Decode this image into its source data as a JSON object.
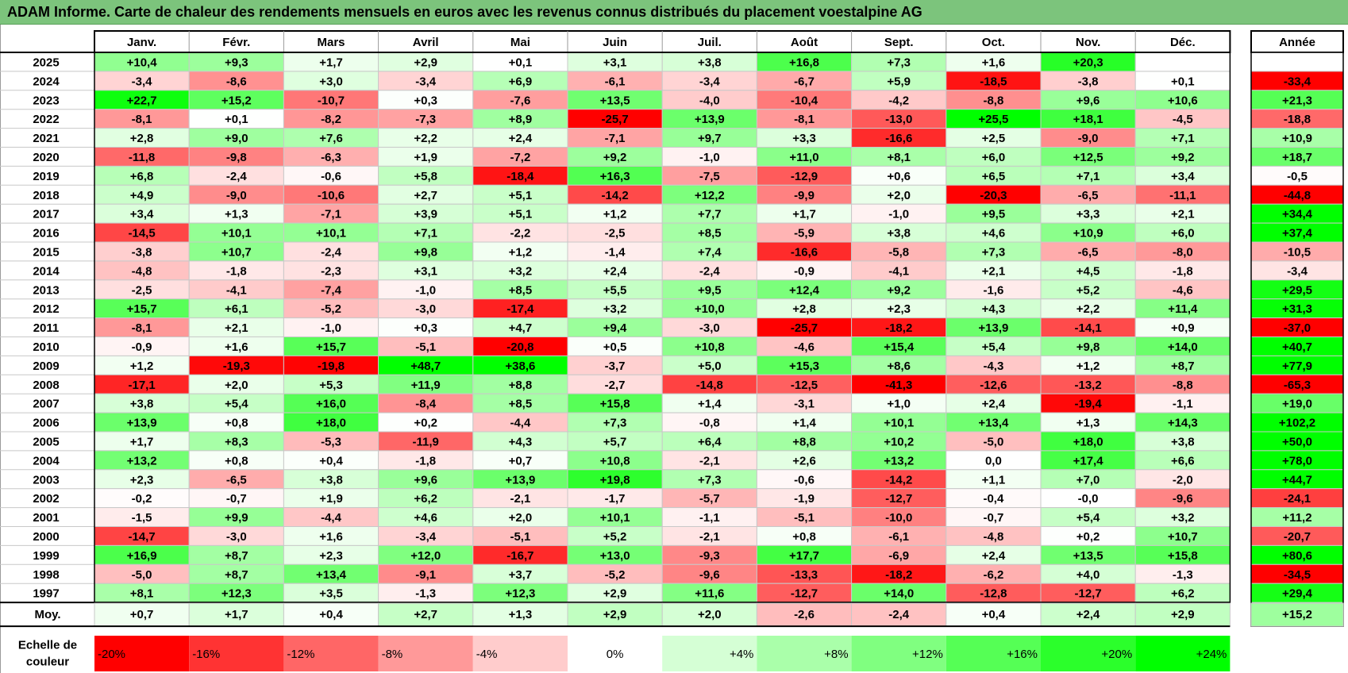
{
  "title": "ADAM Informe. Carte de chaleur des rendements mensuels en euros avec les revenus connus distribués du placement voestalpine AG",
  "chart_data": {
    "type": "heatmap",
    "months": [
      "Janv.",
      "Févr.",
      "Mars",
      "Avril",
      "Mai",
      "Juin",
      "Juil.",
      "Août",
      "Sept.",
      "Oct.",
      "Nov.",
      "Déc."
    ],
    "year_header": "Année",
    "average_label": "Moy.",
    "rows": [
      {
        "year": "2025",
        "values": [
          "+10,4",
          "+9,3",
          "+1,7",
          "+2,9",
          "+0,1",
          "+3,1",
          "+3,8",
          "+16,8",
          "+7,3",
          "+1,6",
          "+20,3",
          ""
        ],
        "annual": ""
      },
      {
        "year": "2024",
        "values": [
          "-3,4",
          "-8,6",
          "+3,0",
          "-3,4",
          "+6,9",
          "-6,1",
          "-3,4",
          "-6,7",
          "+5,9",
          "-18,5",
          "-3,8",
          "+0,1"
        ],
        "annual": "-33,4"
      },
      {
        "year": "2023",
        "values": [
          "+22,7",
          "+15,2",
          "-10,7",
          "+0,3",
          "-7,6",
          "+13,5",
          "-4,0",
          "-10,4",
          "-4,2",
          "-8,8",
          "+9,6",
          "+10,6"
        ],
        "annual": "+21,3"
      },
      {
        "year": "2022",
        "values": [
          "-8,1",
          "+0,1",
          "-8,2",
          "-7,3",
          "+8,9",
          "-25,7",
          "+13,9",
          "-8,1",
          "-13,0",
          "+25,5",
          "+18,1",
          "-4,5"
        ],
        "annual": "-18,8"
      },
      {
        "year": "2021",
        "values": [
          "+2,8",
          "+9,0",
          "+7,6",
          "+2,2",
          "+2,4",
          "-7,1",
          "+9,7",
          "+3,3",
          "-16,6",
          "+2,5",
          "-9,0",
          "+7,1"
        ],
        "annual": "+10,9"
      },
      {
        "year": "2020",
        "values": [
          "-11,8",
          "-9,8",
          "-6,3",
          "+1,9",
          "-7,2",
          "+9,2",
          "-1,0",
          "+11,0",
          "+8,1",
          "+6,0",
          "+12,5",
          "+9,2"
        ],
        "annual": "+18,7"
      },
      {
        "year": "2019",
        "values": [
          "+6,8",
          "-2,4",
          "-0,6",
          "+5,8",
          "-18,4",
          "+16,3",
          "-7,5",
          "-12,9",
          "+0,6",
          "+6,5",
          "+7,1",
          "+3,4"
        ],
        "annual": "-0,5"
      },
      {
        "year": "2018",
        "values": [
          "+4,9",
          "-9,0",
          "-10,6",
          "+2,7",
          "+5,1",
          "-14,2",
          "+12,2",
          "-9,9",
          "+2,0",
          "-20,3",
          "-6,5",
          "-11,1"
        ],
        "annual": "-44,8"
      },
      {
        "year": "2017",
        "values": [
          "+3,4",
          "+1,3",
          "-7,1",
          "+3,9",
          "+5,1",
          "+1,2",
          "+7,7",
          "+1,7",
          "-1,0",
          "+9,5",
          "+3,3",
          "+2,1"
        ],
        "annual": "+34,4"
      },
      {
        "year": "2016",
        "values": [
          "-14,5",
          "+10,1",
          "+10,1",
          "+7,1",
          "-2,2",
          "-2,5",
          "+8,5",
          "-5,9",
          "+3,8",
          "+4,6",
          "+10,9",
          "+6,0"
        ],
        "annual": "+37,4"
      },
      {
        "year": "2015",
        "values": [
          "-3,8",
          "+10,7",
          "-2,4",
          "+9,8",
          "+1,2",
          "-1,4",
          "+7,4",
          "-16,6",
          "-5,8",
          "+7,3",
          "-6,5",
          "-8,0"
        ],
        "annual": "-10,5"
      },
      {
        "year": "2014",
        "values": [
          "-4,8",
          "-1,8",
          "-2,3",
          "+3,1",
          "+3,2",
          "+2,4",
          "-2,4",
          "-0,9",
          "-4,1",
          "+2,1",
          "+4,5",
          "-1,8"
        ],
        "annual": "-3,4"
      },
      {
        "year": "2013",
        "values": [
          "-2,5",
          "-4,1",
          "-7,4",
          "-1,0",
          "+8,5",
          "+5,5",
          "+9,5",
          "+12,4",
          "+9,2",
          "-1,6",
          "+5,2",
          "-4,6"
        ],
        "annual": "+29,5"
      },
      {
        "year": "2012",
        "values": [
          "+15,7",
          "+6,1",
          "-5,2",
          "-3,0",
          "-17,4",
          "+3,2",
          "+10,0",
          "+2,8",
          "+2,3",
          "+4,3",
          "+2,2",
          "+11,4"
        ],
        "annual": "+31,3"
      },
      {
        "year": "2011",
        "values": [
          "-8,1",
          "+2,1",
          "-1,0",
          "+0,3",
          "+4,7",
          "+9,4",
          "-3,0",
          "-25,7",
          "-18,2",
          "+13,9",
          "-14,1",
          "+0,9"
        ],
        "annual": "-37,0"
      },
      {
        "year": "2010",
        "values": [
          "-0,9",
          "+1,6",
          "+15,7",
          "-5,1",
          "-20,8",
          "+0,5",
          "+10,8",
          "-4,6",
          "+15,4",
          "+5,4",
          "+9,8",
          "+14,0"
        ],
        "annual": "+40,7"
      },
      {
        "year": "2009",
        "values": [
          "+1,2",
          "-19,3",
          "-19,8",
          "+48,7",
          "+38,6",
          "-3,7",
          "+5,0",
          "+15,3",
          "+8,6",
          "-4,3",
          "+1,2",
          "+8,7"
        ],
        "annual": "+77,9"
      },
      {
        "year": "2008",
        "values": [
          "-17,1",
          "+2,0",
          "+5,3",
          "+11,9",
          "+8,8",
          "-2,7",
          "-14,8",
          "-12,5",
          "-41,3",
          "-12,6",
          "-13,2",
          "-8,8"
        ],
        "annual": "-65,3"
      },
      {
        "year": "2007",
        "values": [
          "+3,8",
          "+5,4",
          "+16,0",
          "-8,4",
          "+8,5",
          "+15,8",
          "+1,4",
          "-3,1",
          "+1,0",
          "+2,4",
          "-19,4",
          "-1,1"
        ],
        "annual": "+19,0"
      },
      {
        "year": "2006",
        "values": [
          "+13,9",
          "+0,8",
          "+18,0",
          "+0,2",
          "-4,4",
          "+7,3",
          "-0,8",
          "+1,4",
          "+10,1",
          "+13,4",
          "+1,3",
          "+14,3"
        ],
        "annual": "+102,2"
      },
      {
        "year": "2005",
        "values": [
          "+1,7",
          "+8,3",
          "-5,3",
          "-11,9",
          "+4,3",
          "+5,7",
          "+6,4",
          "+8,8",
          "+10,2",
          "-5,0",
          "+18,0",
          "+3,8"
        ],
        "annual": "+50,0"
      },
      {
        "year": "2004",
        "values": [
          "+13,2",
          "+0,8",
          "+0,4",
          "-1,8",
          "+0,7",
          "+10,8",
          "-2,1",
          "+2,6",
          "+13,2",
          "0,0",
          "+17,4",
          "+6,6"
        ],
        "annual": "+78,0"
      },
      {
        "year": "2003",
        "values": [
          "+2,3",
          "-6,5",
          "+3,8",
          "+9,6",
          "+13,9",
          "+19,8",
          "+7,3",
          "-0,6",
          "-14,2",
          "+1,1",
          "+7,0",
          "-2,0"
        ],
        "annual": "+44,7"
      },
      {
        "year": "2002",
        "values": [
          "-0,2",
          "-0,7",
          "+1,9",
          "+6,2",
          "-2,1",
          "-1,7",
          "-5,7",
          "-1,9",
          "-12,7",
          "-0,4",
          "-0,0",
          "-9,6"
        ],
        "annual": "-24,1"
      },
      {
        "year": "2001",
        "values": [
          "-1,5",
          "+9,9",
          "-4,4",
          "+4,6",
          "+2,0",
          "+10,1",
          "-1,1",
          "-5,1",
          "-10,0",
          "-0,7",
          "+5,4",
          "+3,2"
        ],
        "annual": "+11,2"
      },
      {
        "year": "2000",
        "values": [
          "-14,7",
          "-3,0",
          "+1,6",
          "-3,4",
          "-5,1",
          "+5,2",
          "-2,1",
          "+0,8",
          "-6,1",
          "-4,8",
          "+0,2",
          "+10,7"
        ],
        "annual": "-20,7"
      },
      {
        "year": "1999",
        "values": [
          "+16,9",
          "+8,7",
          "+2,3",
          "+12,0",
          "-16,7",
          "+13,0",
          "-9,3",
          "+17,7",
          "-6,9",
          "+2,4",
          "+13,5",
          "+15,8"
        ],
        "annual": "+80,6"
      },
      {
        "year": "1998",
        "values": [
          "-5,0",
          "+8,7",
          "+13,4",
          "-9,1",
          "+3,7",
          "-5,2",
          "-9,6",
          "-13,3",
          "-18,2",
          "-6,2",
          "+4,0",
          "-1,3"
        ],
        "annual": "-34,5"
      },
      {
        "year": "1997",
        "values": [
          "+8,1",
          "+12,3",
          "+3,5",
          "-1,3",
          "+12,3",
          "+2,9",
          "+11,6",
          "-12,7",
          "+14,0",
          "-12,8",
          "-12,7",
          "+6,2"
        ],
        "annual": "+29,4"
      }
    ],
    "average": {
      "values": [
        "+0,7",
        "+1,7",
        "+0,4",
        "+2,7",
        "+1,3",
        "+2,9",
        "+2,0",
        "-2,6",
        "-2,4",
        "+0,4",
        "+2,4",
        "+2,9"
      ],
      "annual": "+15,2"
    },
    "scale_label_line1": "Echelle de",
    "scale_label_line2": "couleur",
    "scale": [
      "-20%",
      "-16%",
      "-12%",
      "-8%",
      "-4%",
      "0%",
      "+4%",
      "+8%",
      "+12%",
      "+16%",
      "+20%",
      "+24%"
    ],
    "colors": {
      "negative": "#ff0000",
      "neutral": "#ffffff",
      "positive": "#00ff00",
      "header": "#7cc47c"
    }
  }
}
